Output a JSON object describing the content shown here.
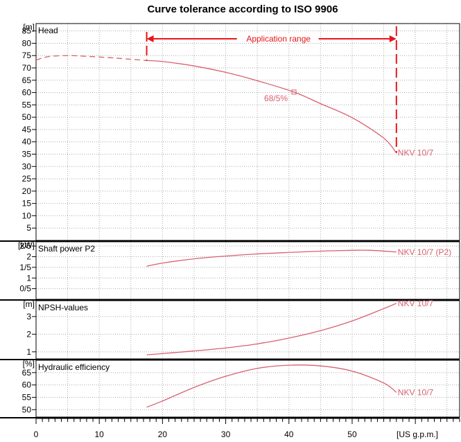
{
  "chart_data": {
    "type": "line",
    "title": "Curve tolerance according to ISO 9906",
    "x_unit": "[US g.p.m.]",
    "xlim": [
      0,
      67
    ],
    "x_ticks": [
      0,
      10,
      20,
      30,
      40,
      50
    ],
    "grid": true,
    "colors": {
      "curve": "#d9606e",
      "range": "#e8141a",
      "axis": "#000000",
      "grid": "#aaaaaa"
    },
    "application_range": {
      "label": "Application range",
      "x": [
        17.5,
        57
      ]
    },
    "panels": [
      {
        "key": "head",
        "label": "Head",
        "unit": "[m]",
        "ylim": [
          0,
          88
        ],
        "y_ticks": [
          5,
          10,
          15,
          20,
          25,
          30,
          35,
          40,
          45,
          50,
          55,
          60,
          65,
          70,
          75,
          80,
          85
        ],
        "series": [
          {
            "name": "NKV 10/7",
            "x": [
              17.5,
              20,
              25,
              30,
              35,
              40.8,
              45,
              50,
              55,
              57
            ],
            "y": [
              73,
              72.6,
              70.8,
              68.2,
              64.8,
              60.2,
              55.5,
              49.8,
              41.5,
              35.5
            ]
          },
          {
            "name": "",
            "style": "dashed-extension",
            "x": [
              0,
              2,
              5,
              8,
              12,
              15,
              17.5
            ],
            "y": [
              73.2,
              74.6,
              75,
              74.7,
              74.1,
              73.5,
              73
            ]
          }
        ],
        "annotations": [
          {
            "text": "68/5%",
            "x": 40.8,
            "y": 60.2
          }
        ],
        "curve_label": "NKV 10/7"
      },
      {
        "key": "power",
        "label": "Shaft power P2",
        "unit": "[kW]",
        "ylim": [
          0,
          2.7
        ],
        "y_ticks": [
          {
            "v": 0.5,
            "t": "0/5"
          },
          {
            "v": 1,
            "t": "1"
          },
          {
            "v": 1.5,
            "t": "1/5"
          },
          {
            "v": 2,
            "t": "2"
          },
          {
            "v": 2.5,
            "t": "2/5"
          }
        ],
        "series": [
          {
            "name": "NKV 10/7 (P2)",
            "x": [
              17.5,
              20,
              25,
              30,
              35,
              40,
              45,
              50,
              53,
              57
            ],
            "y": [
              1.55,
              1.7,
              1.9,
              2.03,
              2.13,
              2.2,
              2.26,
              2.3,
              2.3,
              2.22
            ]
          }
        ],
        "curve_label": "NKV 10/7 (P2)"
      },
      {
        "key": "npsh",
        "label": "NPSH-values",
        "unit": "[m]",
        "ylim": [
          0.6,
          3.9
        ],
        "y_ticks": [
          {
            "v": 1,
            "t": "1"
          },
          {
            "v": 2,
            "t": "2"
          },
          {
            "v": 3,
            "t": "3"
          }
        ],
        "series": [
          {
            "name": "NKV 10/7",
            "x": [
              17.5,
              20,
              25,
              30,
              35,
              40,
              45,
              50,
              55,
              57
            ],
            "y": [
              0.83,
              0.9,
              1.05,
              1.22,
              1.45,
              1.78,
              2.2,
              2.75,
              3.45,
              3.75
            ]
          }
        ],
        "curve_label": "NKV 10/7"
      },
      {
        "key": "eff",
        "label": "Hydraulic efficiency",
        "unit": "[%]",
        "ylim": [
          47,
          70
        ],
        "y_ticks": [
          50,
          55,
          60,
          65
        ],
        "series": [
          {
            "name": "NKV 10/7",
            "x": [
              17.5,
              20,
              25,
              30,
              35,
              40,
              45,
              50,
              55,
              57
            ],
            "y": [
              51,
              53.5,
              59,
              63.5,
              66.7,
              68,
              67.7,
              65.6,
              60.8,
              57
            ]
          }
        ],
        "curve_label": "NKV 10/7"
      }
    ]
  }
}
